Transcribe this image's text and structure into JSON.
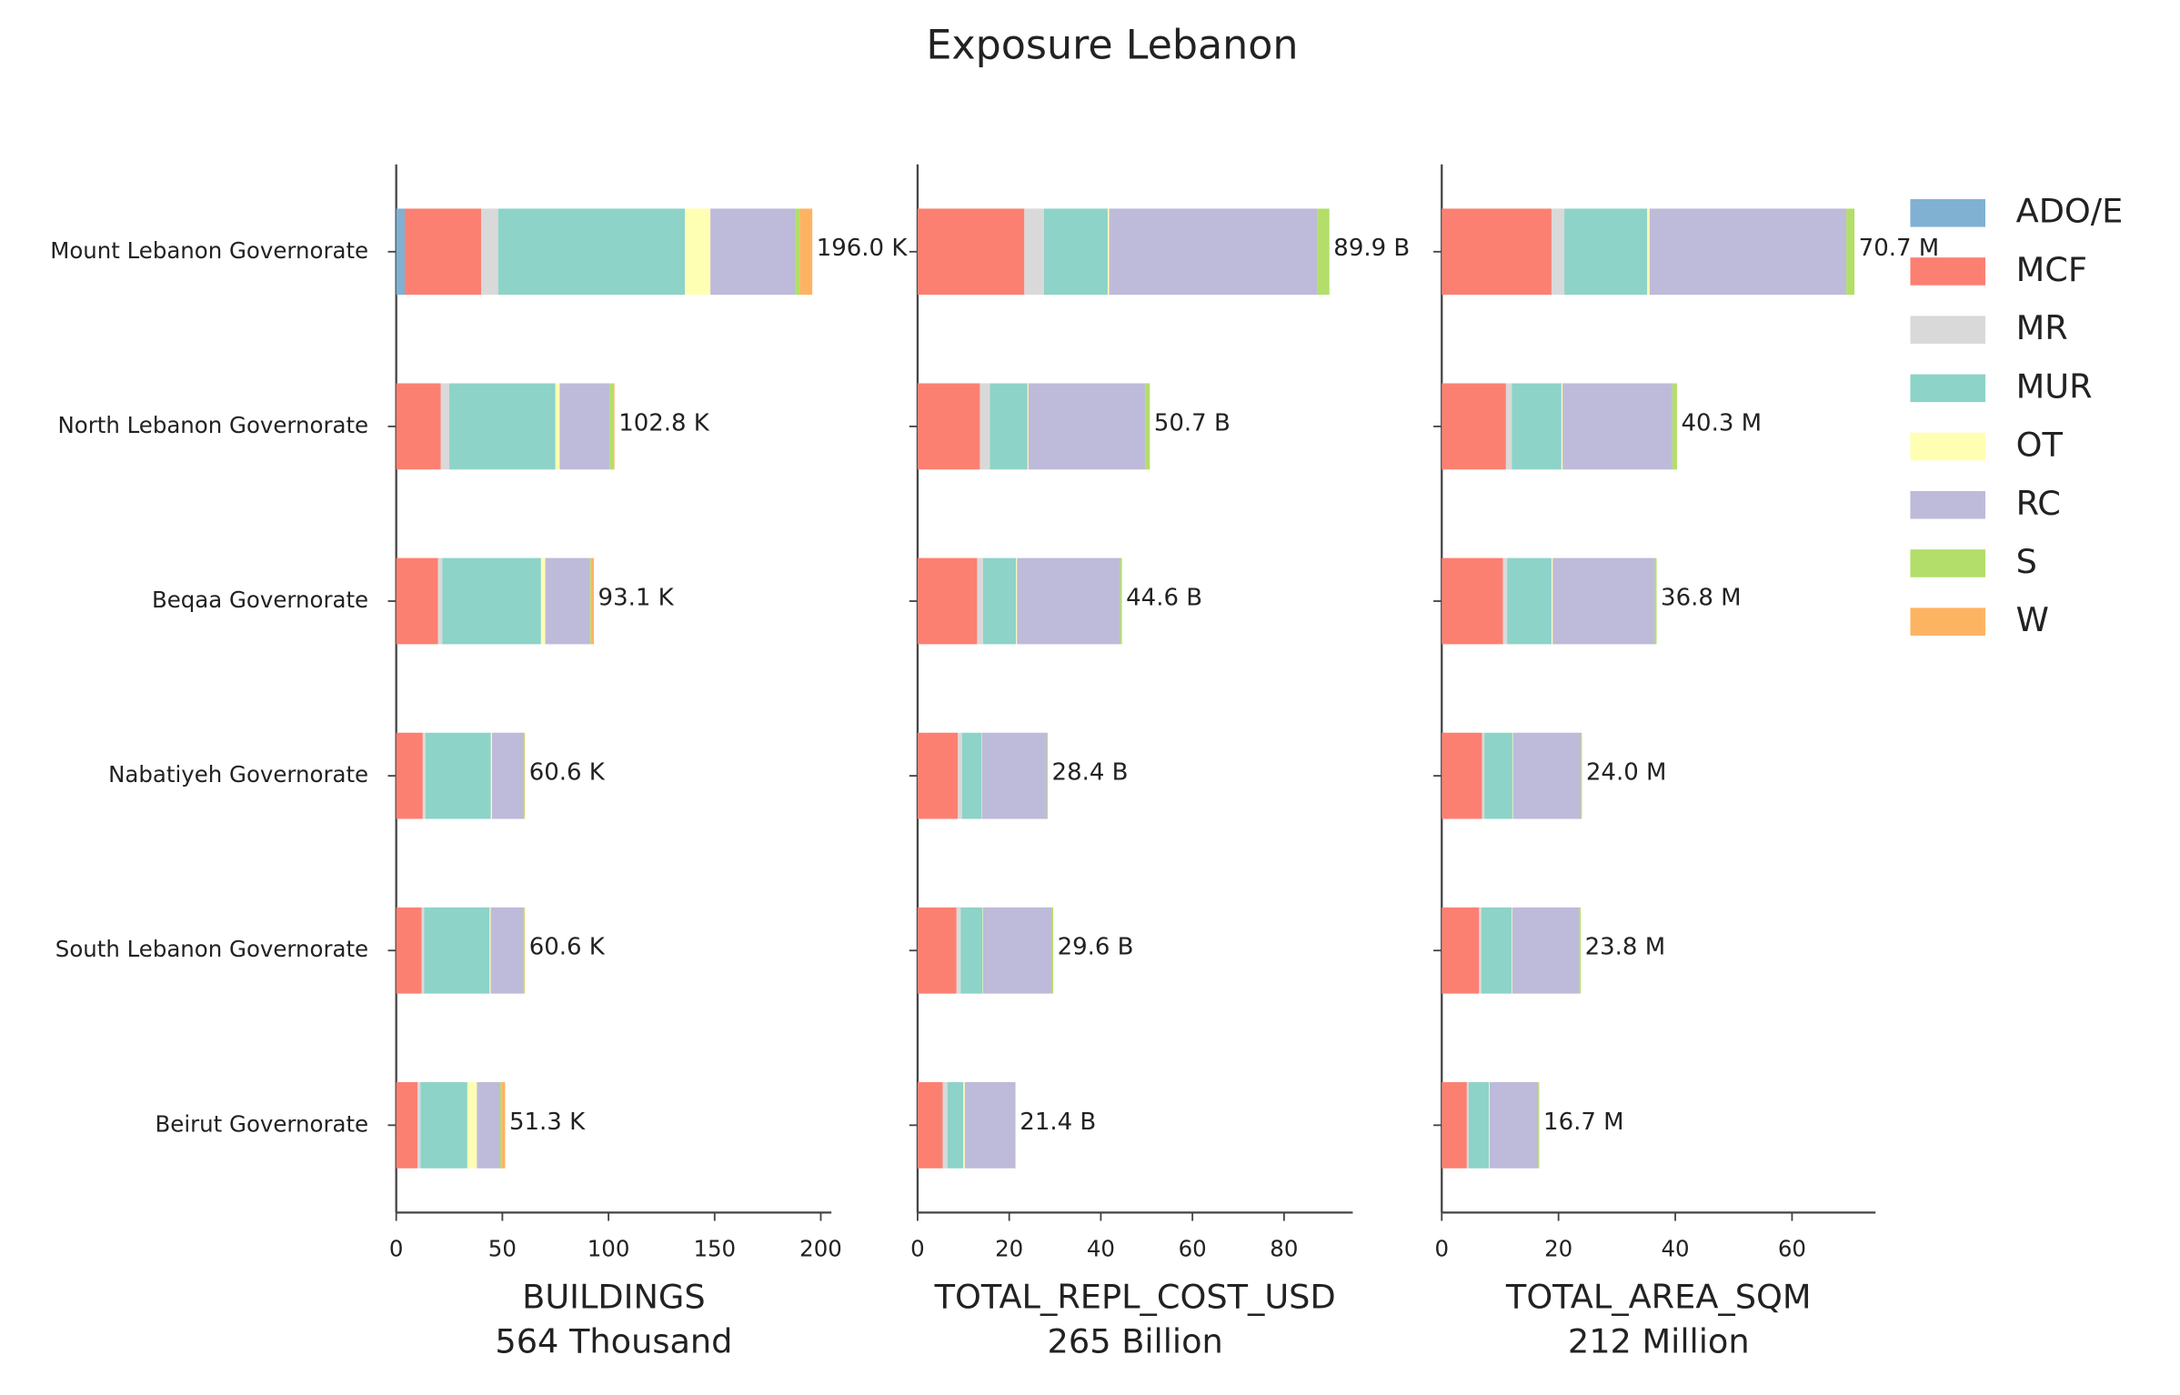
{
  "chart_data": {
    "type": "bar",
    "orientation": "horizontal",
    "stacked": true,
    "title": "Exposure Lebanon",
    "legend": "upper right",
    "categories": [
      "Mount Lebanon Governorate",
      "North Lebanon Governorate",
      "Beqaa Governorate",
      "Nabatiyeh Governorate",
      "South Lebanon Governorate",
      "Beirut Governorate"
    ],
    "series": [
      {
        "name": "ADO/E",
        "color": "#80b1d3"
      },
      {
        "name": "MCF",
        "color": "#fb8072"
      },
      {
        "name": "MR",
        "color": "#d9d9d9"
      },
      {
        "name": "MUR",
        "color": "#8dd3c7"
      },
      {
        "name": "OT",
        "color": "#ffffb3"
      },
      {
        "name": "RC",
        "color": "#bebada"
      },
      {
        "name": "S",
        "color": "#b3de69"
      },
      {
        "name": "W",
        "color": "#fdb462"
      }
    ],
    "panels": [
      {
        "xlabel": "BUILDINGS",
        "subtitle": "564 Thousand",
        "xlim": [
          0,
          205
        ],
        "xticks": [
          0,
          50,
          100,
          150,
          200
        ],
        "values": [
          [
            4,
            0,
            0,
            0,
            0,
            0
          ],
          [
            36,
            21,
            19.7,
            12.5,
            12,
            10
          ],
          [
            8,
            4,
            2,
            1.3,
            1.2,
            1.5
          ],
          [
            88,
            50,
            46.5,
            30.8,
            30.8,
            22
          ],
          [
            12,
            2,
            2,
            0.5,
            0.5,
            4.5
          ],
          [
            40,
            23.5,
            21,
            15,
            15.5,
            11
          ],
          [
            2,
            1.8,
            0.5,
            0.3,
            0.4,
            0.5
          ],
          [
            6,
            0.5,
            1.4,
            0.2,
            0.2,
            1.8
          ]
        ],
        "totals": [
          196.0,
          102.8,
          93.1,
          60.6,
          60.6,
          51.3
        ],
        "value_labels": [
          "196.0 K",
          "102.8 K",
          "93.1 K",
          "60.6 K",
          "60.6 K",
          "51.3 K"
        ]
      },
      {
        "xlabel": "TOTAL_REPL_COST_USD",
        "subtitle": "265 Billion",
        "xlim": [
          0,
          95
        ],
        "xticks": [
          0,
          20,
          40,
          60,
          80
        ],
        "values": [
          [
            0,
            0,
            0,
            0,
            0,
            0
          ],
          [
            23.3,
            13.6,
            13,
            8.8,
            8.5,
            5.5
          ],
          [
            4.3,
            2.2,
            1.3,
            0.9,
            0.9,
            1.0
          ],
          [
            13.9,
            8.2,
            7.2,
            4.3,
            4.8,
            3.5
          ],
          [
            0.3,
            0.2,
            0.2,
            0.1,
            0.1,
            0.3
          ],
          [
            45.5,
            25.5,
            22.5,
            14.1,
            14.9,
            11
          ],
          [
            2.6,
            1.0,
            0.4,
            0.2,
            0.4,
            0.1
          ],
          [
            0,
            0,
            0,
            0,
            0,
            0
          ]
        ],
        "totals": [
          89.9,
          50.7,
          44.6,
          28.4,
          29.6,
          21.4
        ],
        "value_labels": [
          "89.9 B",
          "50.7 B",
          "44.6 B",
          "28.4 B",
          "29.6 B",
          "21.4 B"
        ]
      },
      {
        "xlabel": "TOTAL_AREA_SQM",
        "subtitle": "212 Million",
        "xlim": [
          0,
          74.3
        ],
        "xticks": [
          0,
          20,
          40,
          60
        ],
        "values": [
          [
            0,
            0,
            0,
            0,
            0,
            0
          ],
          [
            18.8,
            11,
            10.5,
            6.9,
            6.4,
            4.3
          ],
          [
            2.2,
            1,
            0.7,
            0.4,
            0.4,
            0.3
          ],
          [
            14.2,
            8.5,
            7.6,
            4.8,
            5.2,
            3.5
          ],
          [
            0.4,
            0.2,
            0.2,
            0.1,
            0.1,
            0.1
          ],
          [
            33.7,
            18.8,
            17.5,
            11.6,
            11.4,
            8.3
          ],
          [
            1.4,
            0.8,
            0.3,
            0.2,
            0.3,
            0.2
          ],
          [
            0,
            0,
            0,
            0,
            0,
            0
          ]
        ],
        "totals": [
          70.7,
          40.3,
          36.8,
          24.0,
          23.8,
          16.7
        ],
        "value_labels": [
          "70.7 M",
          "40.3 M",
          "36.8 M",
          "24.0 M",
          "23.8 M",
          "16.7 M"
        ]
      }
    ]
  }
}
